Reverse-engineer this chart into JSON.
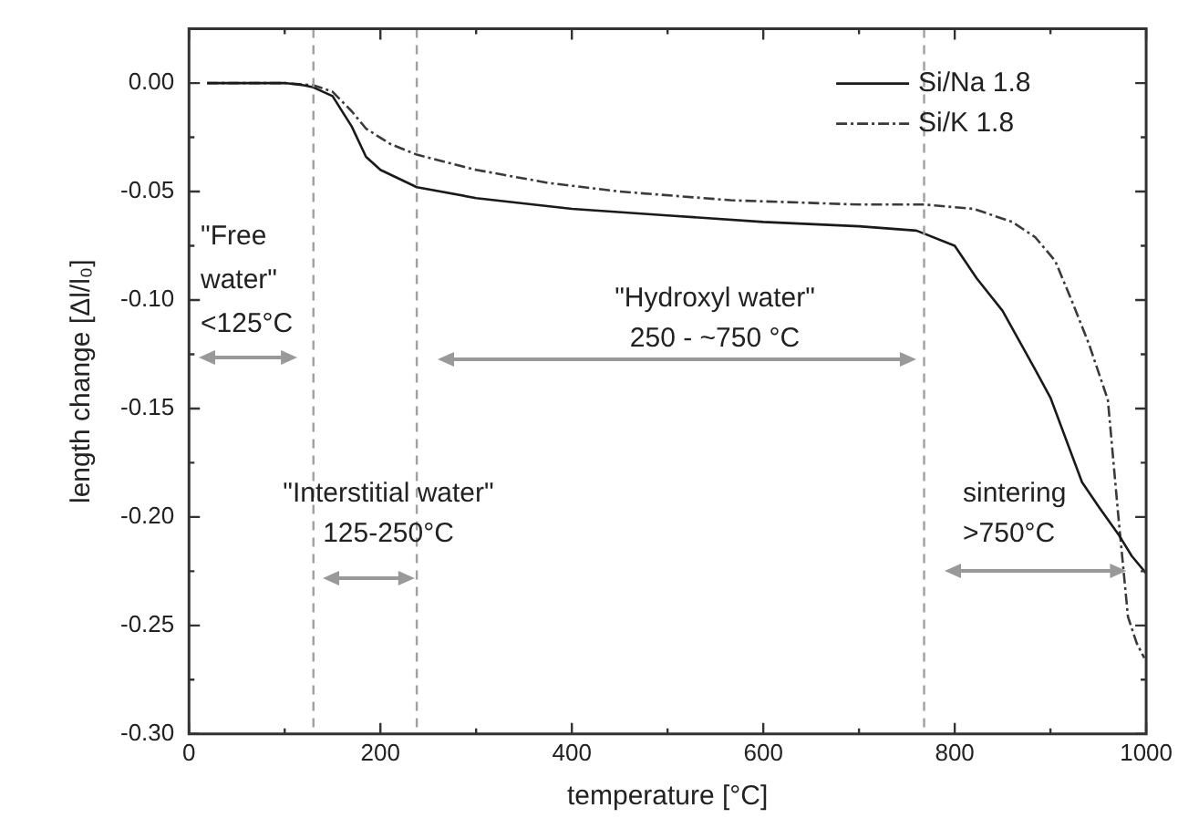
{
  "chart_data": {
    "type": "line",
    "xlabel": "temperature [°C]",
    "ylabel": "length change [Δl/l₀]",
    "xlim": [
      0,
      1000
    ],
    "xticks": [
      0,
      {
        "value": 100,
        "label": null
      },
      200,
      {
        "value": 300,
        "label": null
      },
      400,
      {
        "value": 500,
        "label": null
      },
      600,
      {
        "value": 700,
        "label": null
      },
      800,
      {
        "value": 900,
        "label": null
      },
      1000
    ],
    "ylim": [
      -0.3,
      0.025
    ],
    "yticks": [
      {
        "value": -0.3,
        "label": "-0.30"
      },
      {
        "value": -0.25,
        "label": "-0.25"
      },
      {
        "value": -0.2,
        "label": "-0.20"
      },
      {
        "value": -0.15,
        "label": "-0.15"
      },
      {
        "value": -0.1,
        "label": "-0.10"
      },
      {
        "value": -0.05,
        "label": "-0.05"
      },
      {
        "value": 0,
        "label": "0.00"
      }
    ],
    "grid": false,
    "legend": "top right",
    "marker": "none",
    "series": [
      {
        "name": "Si/Na 1.8",
        "color": "#1a1a1a",
        "line_style": "solid",
        "x": [
          19,
          60,
          100,
          120,
          130,
          150,
          170,
          185,
          200,
          238,
          300,
          400,
          500,
          600,
          700,
          760,
          800,
          823,
          850,
          884,
          900,
          933,
          950,
          971,
          985,
          1000
        ],
        "values": [
          0,
          0,
          0,
          -0.001,
          -0.002,
          -0.006,
          -0.02,
          -0.034,
          -0.04,
          -0.048,
          -0.053,
          -0.058,
          -0.061,
          -0.064,
          -0.066,
          -0.068,
          -0.075,
          -0.09,
          -0.105,
          -0.132,
          -0.145,
          -0.184,
          -0.195,
          -0.208,
          -0.218,
          -0.226
        ]
      },
      {
        "name": "Si/K 1.8",
        "color": "#3a3a3a",
        "line_style": "dashdot",
        "x": [
          19,
          60,
          100,
          130,
          150,
          170,
          185,
          210,
          238,
          300,
          375,
          450,
          566,
          700,
          768,
          820,
          860,
          884,
          905,
          922,
          940,
          960,
          971,
          981,
          990,
          998
        ],
        "values": [
          0,
          0,
          0,
          -0.001,
          -0.004,
          -0.013,
          -0.021,
          -0.028,
          -0.033,
          -0.04,
          -0.046,
          -0.05,
          -0.054,
          -0.056,
          -0.056,
          -0.058,
          -0.064,
          -0.071,
          -0.082,
          -0.1,
          -0.12,
          -0.146,
          -0.2,
          -0.246,
          -0.258,
          -0.265
        ]
      }
    ],
    "ref_lines": [
      {
        "axis": "x",
        "value": 130,
        "color": "#a0a0a0",
        "line_style": "dashed"
      },
      {
        "axis": "x",
        "value": 238,
        "color": "#a0a0a0",
        "line_style": "dashed"
      },
      {
        "axis": "x",
        "value": 768,
        "color": "#a0a0a0",
        "line_style": "dashed"
      }
    ],
    "annotations": [
      "\"Free\nwater\"\n<125°C",
      "\"Interstitial water\"\n125-250°C",
      "\"Hydroxyl water\"\n250 - ~750 °C",
      {
        "text": "sintering\n>750°C",
        "x": 980,
        "y": -0.225
      }
    ]
  }
}
